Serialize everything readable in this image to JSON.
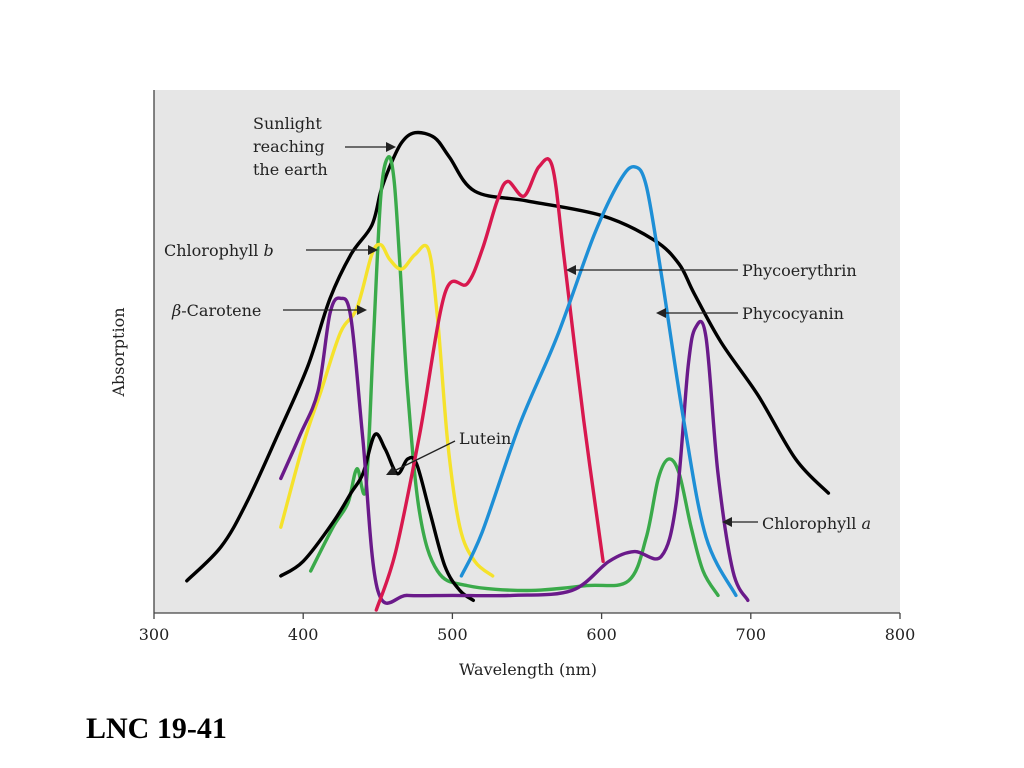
{
  "footer": {
    "label": "LNC 19-41"
  },
  "chart_data": {
    "type": "line",
    "xlabel": "Wavelength (nm)",
    "ylabel": "Absorption",
    "xlim": [
      300,
      800
    ],
    "ylim": [
      0,
      1
    ],
    "x_ticks": [
      300,
      400,
      500,
      600,
      700,
      800
    ],
    "y_ticks": [],
    "background": "#e6e6e6",
    "grid": false,
    "legend": "none (inline annotations)",
    "series": [
      {
        "name": "Sunlight reaching the earth",
        "color": "#000000",
        "x": [
          322,
          345,
          362,
          383,
          403,
          418,
          432,
          446,
          452,
          458,
          466,
          475,
          488,
          498,
          515,
          550,
          600,
          635,
          652,
          662,
          680,
          705,
          730,
          752
        ],
        "y": [
          0.06,
          0.13,
          0.22,
          0.36,
          0.5,
          0.64,
          0.73,
          0.79,
          0.86,
          0.91,
          0.96,
          0.98,
          0.97,
          0.93,
          0.86,
          0.84,
          0.81,
          0.76,
          0.71,
          0.65,
          0.55,
          0.44,
          0.31,
          0.24
        ]
      },
      {
        "name": "Chlorophyll b",
        "color": "#3aaa4a",
        "x": [
          405,
          420,
          430,
          436,
          442,
          447,
          452,
          457,
          461,
          465,
          470,
          478,
          490,
          510,
          550,
          590,
          618,
          630,
          638,
          645,
          652,
          660,
          668,
          678
        ],
        "y": [
          0.08,
          0.17,
          0.22,
          0.29,
          0.25,
          0.55,
          0.85,
          0.93,
          0.88,
          0.7,
          0.45,
          0.2,
          0.08,
          0.05,
          0.04,
          0.05,
          0.06,
          0.15,
          0.27,
          0.31,
          0.28,
          0.17,
          0.08,
          0.03
        ]
      },
      {
        "name": "β-Carotene",
        "color": "#f5e22b",
        "x": [
          385,
          400,
          412,
          425,
          436,
          446,
          452,
          458,
          466,
          475,
          484,
          490,
          497,
          505,
          515,
          527
        ],
        "y": [
          0.17,
          0.34,
          0.45,
          0.57,
          0.62,
          0.73,
          0.75,
          0.72,
          0.7,
          0.73,
          0.74,
          0.6,
          0.34,
          0.17,
          0.1,
          0.07
        ]
      },
      {
        "name": "Lutein",
        "color": "#000000",
        "x": [
          385,
          400,
          420,
          432,
          440,
          448,
          455,
          463,
          470,
          476,
          485,
          495,
          505,
          514
        ],
        "y": [
          0.07,
          0.1,
          0.18,
          0.24,
          0.28,
          0.36,
          0.33,
          0.28,
          0.31,
          0.3,
          0.2,
          0.09,
          0.04,
          0.02
        ]
      },
      {
        "name": "Chlorophyll a",
        "color": "#6a1a8a",
        "x": [
          385,
          398,
          410,
          418,
          425,
          432,
          440,
          450,
          470,
          500,
          540,
          580,
          605,
          622,
          640,
          650,
          658,
          663,
          670,
          678,
          688,
          698
        ],
        "y": [
          0.27,
          0.36,
          0.45,
          0.61,
          0.64,
          0.6,
          0.35,
          0.04,
          0.03,
          0.03,
          0.03,
          0.04,
          0.1,
          0.12,
          0.11,
          0.22,
          0.5,
          0.58,
          0.56,
          0.28,
          0.08,
          0.02
        ]
      },
      {
        "name": "Phycoerythrin",
        "color": "#d8184e",
        "x": [
          449,
          462,
          478,
          495,
          510,
          520,
          530,
          537,
          548,
          558,
          567,
          575,
          588,
          601
        ],
        "y": [
          0.0,
          0.12,
          0.36,
          0.65,
          0.67,
          0.74,
          0.84,
          0.88,
          0.85,
          0.91,
          0.91,
          0.72,
          0.39,
          0.1
        ]
      },
      {
        "name": "Phycocyanin",
        "color": "#1e8fd6",
        "x": [
          506,
          520,
          545,
          570,
          595,
          612,
          622,
          630,
          640,
          655,
          670,
          690
        ],
        "y": [
          0.07,
          0.16,
          0.38,
          0.56,
          0.77,
          0.88,
          0.91,
          0.87,
          0.69,
          0.39,
          0.15,
          0.03
        ]
      }
    ],
    "annotations": [
      {
        "label_lines": [
          "Sunlight",
          "reaching",
          "the earth"
        ]
      },
      {
        "label": "Chlorophyll ",
        "label_italic": "b"
      },
      {
        "label_italic": "β",
        "label": "-Carotene"
      },
      {
        "label": "Lutein"
      },
      {
        "label": "Phycoerythrin"
      },
      {
        "label": "Phycocyanin"
      },
      {
        "label": "Chlorophyll ",
        "label_italic": "a"
      }
    ]
  }
}
